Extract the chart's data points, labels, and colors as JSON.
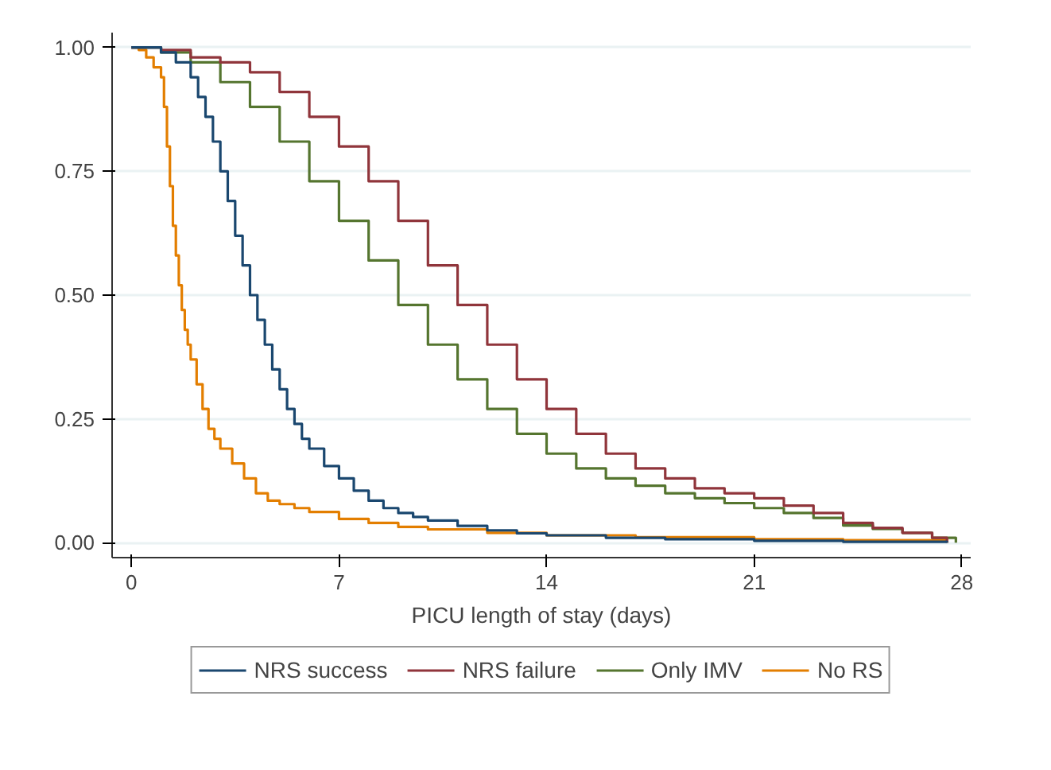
{
  "chart_data": {
    "type": "step",
    "xlabel": "PICU length of stay (days)",
    "xlim": [
      -0.65,
      28.3
    ],
    "ylim": [
      -0.03,
      1.03
    ],
    "xticks": [
      0,
      7,
      14,
      21,
      28
    ],
    "yticks": [
      {
        "value": 0,
        "label": "0.00"
      },
      {
        "value": 0.25,
        "label": "0.25"
      },
      {
        "value": 0.5,
        "label": "0.50"
      },
      {
        "value": 0.75,
        "label": "0.75"
      },
      {
        "value": 1,
        "label": "1.00"
      }
    ],
    "grid": "y",
    "legend": "bottom",
    "line_style": "solid",
    "marker": "none",
    "series": [
      {
        "name": "NRS success",
        "color": "#1a476f",
        "x": [
          0,
          0.5,
          1,
          1.5,
          2,
          2.25,
          2.5,
          2.75,
          3,
          3.25,
          3.5,
          3.75,
          4,
          4.25,
          4.5,
          4.75,
          5,
          5.25,
          5.5,
          5.75,
          6,
          6.5,
          7,
          7.5,
          8,
          8.5,
          9,
          9.5,
          10,
          11,
          12,
          13,
          14,
          16,
          18,
          21,
          24,
          27.5
        ],
        "values": [
          1,
          1,
          0.99,
          0.97,
          0.94,
          0.9,
          0.86,
          0.81,
          0.75,
          0.69,
          0.62,
          0.56,
          0.5,
          0.45,
          0.4,
          0.35,
          0.31,
          0.27,
          0.24,
          0.21,
          0.19,
          0.155,
          0.13,
          0.105,
          0.085,
          0.07,
          0.06,
          0.052,
          0.045,
          0.034,
          0.025,
          0.019,
          0.015,
          0.01,
          0.007,
          0.004,
          0.002,
          0
        ]
      },
      {
        "name": "NRS failure",
        "color": "#90353b",
        "x": [
          0,
          1,
          2,
          3,
          4,
          5,
          6,
          7,
          8,
          9,
          10,
          11,
          12,
          13,
          14,
          15,
          16,
          17,
          18,
          19,
          20,
          21,
          22,
          23,
          24,
          25,
          26,
          27,
          27.5
        ],
        "values": [
          1,
          0.995,
          0.98,
          0.97,
          0.95,
          0.91,
          0.86,
          0.8,
          0.73,
          0.65,
          0.56,
          0.48,
          0.4,
          0.33,
          0.27,
          0.22,
          0.18,
          0.15,
          0.13,
          0.11,
          0.1,
          0.09,
          0.075,
          0.06,
          0.04,
          0.03,
          0.02,
          0.01,
          0
        ]
      },
      {
        "name": "Only IMV",
        "color": "#55752f",
        "x": [
          0,
          1,
          2,
          3,
          4,
          5,
          6,
          7,
          8,
          9,
          10,
          11,
          12,
          13,
          14,
          15,
          16,
          17,
          18,
          19,
          20,
          21,
          22,
          23,
          24,
          25,
          26,
          27,
          27.8
        ],
        "values": [
          1,
          0.99,
          0.97,
          0.93,
          0.88,
          0.81,
          0.73,
          0.65,
          0.57,
          0.48,
          0.4,
          0.33,
          0.27,
          0.22,
          0.18,
          0.15,
          0.13,
          0.115,
          0.1,
          0.09,
          0.08,
          0.07,
          0.06,
          0.05,
          0.035,
          0.028,
          0.02,
          0.01,
          0
        ]
      },
      {
        "name": "No RS",
        "color": "#e37e00",
        "x": [
          0,
          0.25,
          0.5,
          0.75,
          1,
          1.1,
          1.2,
          1.3,
          1.4,
          1.5,
          1.6,
          1.7,
          1.8,
          1.9,
          2,
          2.2,
          2.4,
          2.6,
          2.8,
          3,
          3.4,
          3.8,
          4.2,
          4.6,
          5,
          5.5,
          6,
          7,
          8,
          9,
          10,
          12,
          14,
          17,
          21,
          24,
          27.5
        ],
        "values": [
          1,
          0.995,
          0.98,
          0.96,
          0.94,
          0.88,
          0.8,
          0.72,
          0.64,
          0.58,
          0.52,
          0.47,
          0.43,
          0.4,
          0.37,
          0.32,
          0.27,
          0.23,
          0.21,
          0.19,
          0.16,
          0.13,
          0.1,
          0.085,
          0.078,
          0.07,
          0.062,
          0.048,
          0.04,
          0.032,
          0.027,
          0.02,
          0.015,
          0.011,
          0.007,
          0.005,
          0
        ]
      }
    ]
  }
}
